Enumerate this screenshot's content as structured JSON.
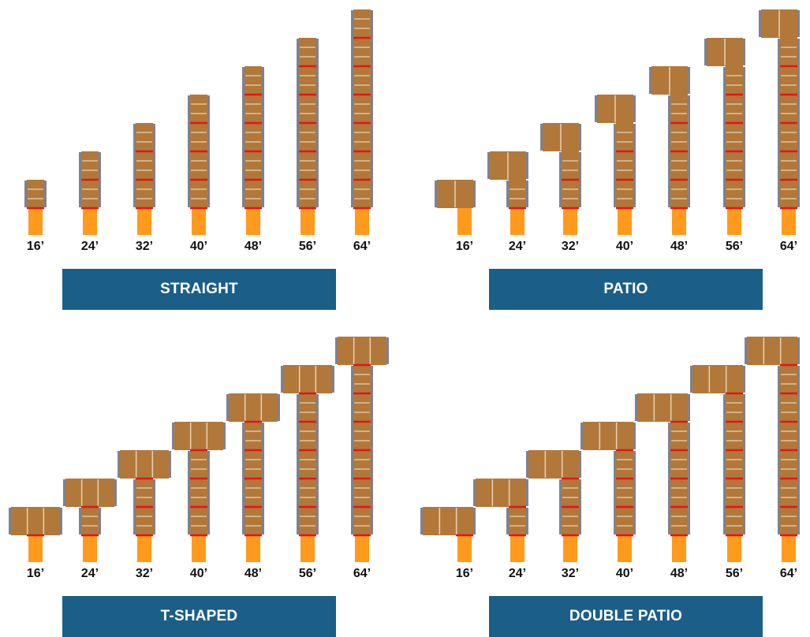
{
  "colors": {
    "dock": "#b1783a",
    "board_line": "#e6d3b5",
    "cleat": "#7d8290",
    "seam": "#e3141c",
    "ramp": "#ff9a1c",
    "banner_bg": "#1b5e87",
    "banner_text": "#ffffff",
    "label_text": "#111111"
  },
  "lengths": [
    "16’",
    "24’",
    "32’",
    "40’",
    "48’",
    "56’",
    "64’"
  ],
  "panels": [
    {
      "id": "straight",
      "label": "STRAIGHT",
      "head": "none"
    },
    {
      "id": "patio",
      "label": "PATIO",
      "head": "left"
    },
    {
      "id": "t-shaped",
      "label": "T-SHAPED",
      "head": "both"
    },
    {
      "id": "double-patio",
      "label": "DOUBLE PATIO",
      "head": "left-wide"
    }
  ]
}
